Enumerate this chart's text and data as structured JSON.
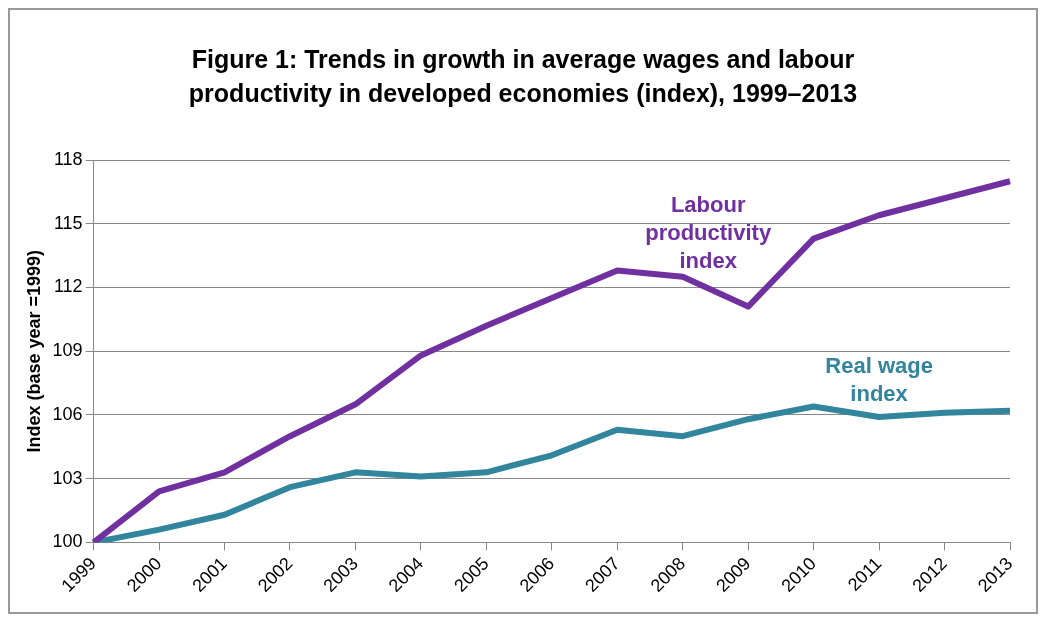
{
  "chart_data": {
    "type": "line",
    "title": "Figure 1: Trends in growth in average wages and labour productivity in developed economies (index), 1999–2013",
    "ylabel": "Index (base year =1999)",
    "categories": [
      "1999",
      "2000",
      "2001",
      "2002",
      "2003",
      "2004",
      "2005",
      "2006",
      "2007",
      "2008",
      "2009",
      "2010",
      "2011",
      "2012",
      "2013"
    ],
    "series": [
      {
        "name": "Labour productivity index",
        "color": "#7030a0",
        "values": [
          100,
          102.4,
          103.3,
          105.0,
          106.5,
          108.8,
          110.2,
          111.5,
          112.8,
          112.5,
          111.1,
          114.3,
          115.4,
          116.2,
          117.0
        ]
      },
      {
        "name": "Real wage index",
        "color": "#31859c",
        "values": [
          100,
          100.6,
          101.3,
          102.6,
          103.3,
          103.1,
          103.3,
          104.1,
          105.3,
          105.0,
          105.8,
          106.4,
          105.9,
          106.1,
          106.2
        ]
      }
    ],
    "ylim": [
      100,
      118
    ],
    "yticks": [
      100,
      103,
      106,
      109,
      112,
      115,
      118
    ],
    "grid": "y",
    "legend": false,
    "marker": "none",
    "line_style": "solid"
  }
}
